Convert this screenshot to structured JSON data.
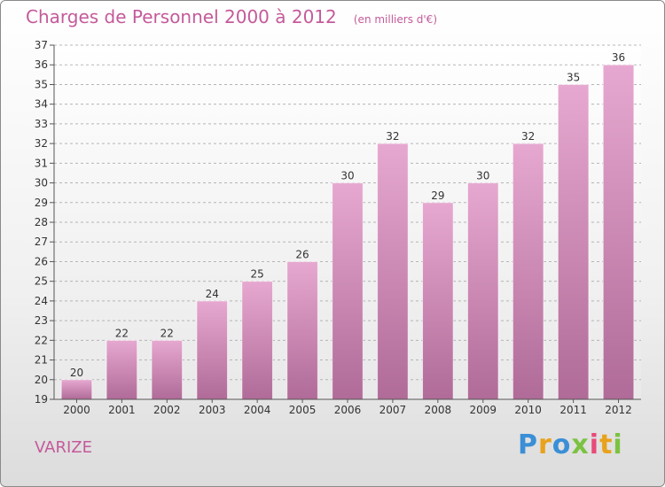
{
  "chart_data": {
    "type": "bar",
    "title": "Charges de Personnel 2000 à 2012",
    "subtitle": "(en milliers d'€)",
    "categories": [
      "2000",
      "2001",
      "2002",
      "2003",
      "2004",
      "2005",
      "2006",
      "2007",
      "2008",
      "2009",
      "2010",
      "2011",
      "2012"
    ],
    "values": [
      20,
      22,
      22,
      24,
      25,
      26,
      30,
      32,
      29,
      30,
      32,
      35,
      36
    ],
    "ylim": [
      19,
      37
    ],
    "yticks": [
      19,
      20,
      21,
      22,
      23,
      24,
      25,
      26,
      27,
      28,
      29,
      30,
      31,
      32,
      33,
      34,
      35,
      36,
      37
    ],
    "grid": true,
    "bar_color_top": "#e6a8d0",
    "bar_color_bottom": "#b06b98"
  },
  "commune": "VARIZE",
  "logo": {
    "letters": [
      "P",
      "r",
      "o",
      "x",
      "i",
      "t",
      "i"
    ],
    "colors": [
      "#3a8fd6",
      "#e8a21c",
      "#3a8fd6",
      "#7cc242",
      "#e84a7a",
      "#e8a21c",
      "#7cc242"
    ]
  }
}
